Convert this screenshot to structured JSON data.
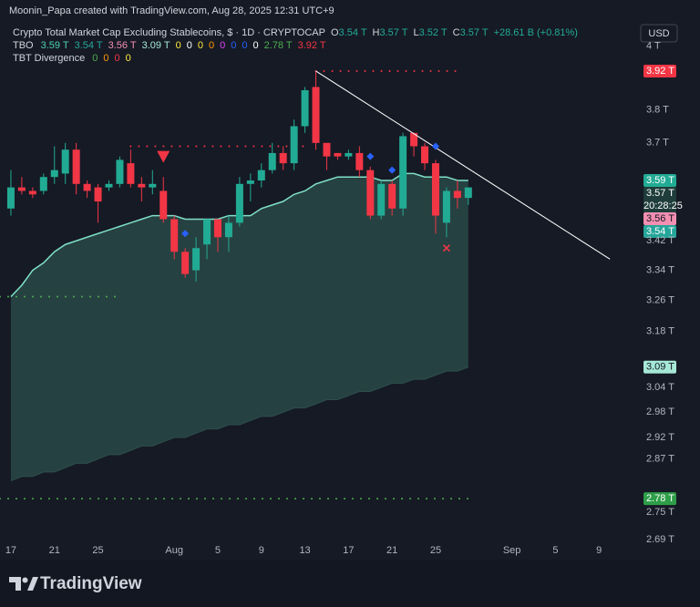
{
  "attribution": "Moonin_Papa created with TradingView.com, Aug 28, 2025 12:31 UTC+9",
  "footer_logo": "TradingView",
  "chart_data": {
    "type": "candlestick",
    "title": "Crypto Total Market Cap Excluding Stablecoins, $ · 1D · CRYPTOCAP",
    "ohlc_legend": [
      {
        "label": "O",
        "value": "3.54 T"
      },
      {
        "label": "H",
        "value": "3.57 T"
      },
      {
        "label": "L",
        "value": "3.52 T"
      },
      {
        "label": "C",
        "value": "3.57 T"
      }
    ],
    "change": "+28.61 B (+0.81%)",
    "currency": "USD",
    "indicators": [
      {
        "name": "TBO",
        "values": [
          {
            "text": "3.59 T",
            "color": "#4dd0b1"
          },
          {
            "text": "3.54 T",
            "color": "#26a69a"
          },
          {
            "text": "3.56 T",
            "color": "#f48fb1"
          },
          {
            "text": "3.09 T",
            "color": "#a5e8d6"
          },
          {
            "text": "0",
            "color": "#ffeb3b"
          },
          {
            "text": "0",
            "color": "#ffffff"
          },
          {
            "text": "0",
            "color": "#ffeb3b"
          },
          {
            "text": "0",
            "color": "#ff9800"
          },
          {
            "text": "0",
            "color": "#e040fb"
          },
          {
            "text": "0",
            "color": "#2962ff"
          },
          {
            "text": "0",
            "color": "#2962ff"
          },
          {
            "text": "0",
            "color": "#ffffff"
          },
          {
            "text": "2.78 T",
            "color": "#4caf50"
          },
          {
            "text": "3.92 T",
            "color": "#f23645"
          }
        ]
      },
      {
        "name": "TBT Divergence",
        "values": [
          {
            "text": "0",
            "color": "#4caf50"
          },
          {
            "text": "0",
            "color": "#ff9800"
          },
          {
            "text": "0",
            "color": "#f23645"
          },
          {
            "text": "0",
            "color": "#ffeb3b"
          }
        ]
      }
    ],
    "x": [
      "2025-07-17",
      "2025-07-18",
      "2025-07-19",
      "2025-07-20",
      "2025-07-21",
      "2025-07-22",
      "2025-07-23",
      "2025-07-24",
      "2025-07-25",
      "2025-07-26",
      "2025-07-27",
      "2025-07-28",
      "2025-07-29",
      "2025-07-30",
      "2025-07-31",
      "2025-08-01",
      "2025-08-02",
      "2025-08-03",
      "2025-08-04",
      "2025-08-05",
      "2025-08-06",
      "2025-08-07",
      "2025-08-08",
      "2025-08-09",
      "2025-08-10",
      "2025-08-11",
      "2025-08-12",
      "2025-08-13",
      "2025-08-14",
      "2025-08-15",
      "2025-08-16",
      "2025-08-17",
      "2025-08-18",
      "2025-08-19",
      "2025-08-20",
      "2025-08-21",
      "2025-08-22",
      "2025-08-23",
      "2025-08-24",
      "2025-08-25",
      "2025-08-26",
      "2025-08-27",
      "2025-08-28"
    ],
    "open": [
      3.51,
      3.57,
      3.56,
      3.56,
      3.6,
      3.61,
      3.68,
      3.58,
      3.57,
      3.57,
      3.58,
      3.64,
      3.58,
      3.57,
      3.56,
      3.48,
      3.39,
      3.34,
      3.41,
      3.48,
      3.43,
      3.47,
      3.58,
      3.59,
      3.62,
      3.67,
      3.64,
      3.75,
      3.87,
      3.7,
      3.67,
      3.66,
      3.67,
      3.62,
      3.49,
      3.58,
      3.51,
      3.73,
      3.69,
      3.64,
      3.47,
      3.56,
      3.54
    ],
    "high": [
      3.62,
      3.6,
      3.57,
      3.61,
      3.69,
      3.7,
      3.7,
      3.59,
      3.58,
      3.59,
      3.66,
      3.68,
      3.6,
      3.62,
      3.6,
      3.49,
      3.4,
      3.43,
      3.48,
      3.48,
      3.49,
      3.6,
      3.61,
      3.64,
      3.7,
      3.69,
      3.77,
      3.87,
      3.92,
      3.7,
      3.67,
      3.68,
      3.69,
      3.63,
      3.59,
      3.59,
      3.73,
      3.73,
      3.7,
      3.65,
      3.57,
      3.59,
      3.57
    ],
    "low": [
      3.49,
      3.55,
      3.54,
      3.55,
      3.58,
      3.58,
      3.55,
      3.54,
      3.47,
      3.56,
      3.57,
      3.57,
      3.53,
      3.55,
      3.47,
      3.37,
      3.32,
      3.31,
      3.37,
      3.39,
      3.39,
      3.46,
      3.53,
      3.57,
      3.61,
      3.62,
      3.62,
      3.73,
      3.68,
      3.62,
      3.65,
      3.65,
      3.6,
      3.48,
      3.48,
      3.49,
      3.49,
      3.66,
      3.62,
      3.44,
      3.43,
      3.51,
      3.52
    ],
    "close": [
      3.57,
      3.56,
      3.55,
      3.6,
      3.62,
      3.68,
      3.58,
      3.56,
      3.53,
      3.58,
      3.65,
      3.58,
      3.57,
      3.58,
      3.48,
      3.39,
      3.33,
      3.4,
      3.48,
      3.43,
      3.47,
      3.58,
      3.59,
      3.62,
      3.67,
      3.64,
      3.75,
      3.86,
      3.7,
      3.66,
      3.66,
      3.67,
      3.62,
      3.49,
      3.58,
      3.51,
      3.72,
      3.69,
      3.64,
      3.49,
      3.56,
      3.54,
      3.57
    ],
    "up_color": "#22ab94",
    "down_color": "#f23645",
    "ma": {
      "color": "#7fe0c8",
      "values": [
        3.27,
        3.3,
        3.34,
        3.36,
        3.39,
        3.41,
        3.42,
        3.43,
        3.44,
        3.45,
        3.46,
        3.47,
        3.48,
        3.49,
        3.49,
        3.49,
        3.48,
        3.48,
        3.48,
        3.48,
        3.49,
        3.49,
        3.49,
        3.51,
        3.52,
        3.53,
        3.55,
        3.56,
        3.58,
        3.59,
        3.6,
        3.6,
        3.6,
        3.6,
        3.59,
        3.59,
        3.61,
        3.61,
        3.6,
        3.6,
        3.6,
        3.59,
        3.59
      ]
    },
    "cloud": {
      "color": "#2c4f4b",
      "values": [
        2.82,
        2.83,
        2.83,
        2.84,
        2.84,
        2.85,
        2.86,
        2.86,
        2.87,
        2.88,
        2.88,
        2.89,
        2.9,
        2.9,
        2.91,
        2.92,
        2.92,
        2.93,
        2.94,
        2.94,
        2.95,
        2.95,
        2.96,
        2.97,
        2.97,
        2.98,
        2.99,
        2.99,
        3.0,
        3.01,
        3.01,
        3.02,
        3.03,
        3.03,
        3.04,
        3.05,
        3.05,
        3.06,
        3.06,
        3.07,
        3.08,
        3.08,
        3.09
      ]
    },
    "levels": [
      {
        "value": 3.92,
        "from": "2025-08-14",
        "to": "2025-08-27",
        "color": "#f23645"
      },
      {
        "value": 3.69,
        "from": "2025-07-28",
        "to": "2025-08-13",
        "color": "#f23645"
      },
      {
        "value": 3.27,
        "from": "2025-07-16",
        "to": "2025-07-27",
        "color": "#4caf50"
      },
      {
        "value": 2.78,
        "from": "2025-07-16",
        "to": "2025-08-28",
        "color": "#4caf50"
      }
    ],
    "trendline": {
      "from": [
        "2025-08-14",
        3.92
      ],
      "to": [
        "2025-09-10",
        3.37
      ],
      "color": "#ffffff"
    },
    "markers": [
      {
        "shape": "triangle-down",
        "x": "2025-07-31",
        "value": 3.66,
        "color": "#f23645"
      },
      {
        "shape": "diamond",
        "x": "2025-08-02",
        "value": 3.44,
        "color": "#2962ff"
      },
      {
        "shape": "diamond",
        "x": "2025-08-19",
        "value": 3.66,
        "color": "#2962ff"
      },
      {
        "shape": "diamond",
        "x": "2025-08-21",
        "value": 3.62,
        "color": "#2962ff"
      },
      {
        "shape": "diamond",
        "x": "2025-08-25",
        "value": 3.69,
        "color": "#2962ff"
      },
      {
        "shape": "cross",
        "x": "2025-08-26",
        "value": 3.4,
        "color": "#f23645"
      }
    ],
    "price_labels": [
      {
        "value": 3.92,
        "label": "3.92 T",
        "color": "#f23645",
        "text_color": "#ffffff"
      },
      {
        "value": 3.59,
        "label": "3.59 T",
        "color": "#22ab94",
        "text_color": "#ffffff"
      },
      {
        "value": 3.57,
        "label": "3.57 T",
        "countdown": "20:28:25",
        "color": "#1f3d3b",
        "text_color": "#ffffff"
      },
      {
        "value": 3.56,
        "label": "3.56 T",
        "color": "#f48fb1",
        "text_color": "#131722"
      },
      {
        "value": 3.54,
        "label": "3.54 T",
        "color": "#26a69a",
        "text_color": "#ffffff"
      },
      {
        "value": 3.09,
        "label": "3.09 T",
        "color": "#a5e8d6",
        "text_color": "#131722"
      },
      {
        "value": 2.78,
        "label": "2.78 T",
        "color": "#2e9e48",
        "text_color": "#ffffff"
      }
    ],
    "log_scale": true,
    "xlim": [
      "2025-07-16",
      "2025-09-13"
    ],
    "ylim": [
      2.69,
      4.09
    ],
    "xticks": [
      {
        "value": "2025-07-17",
        "label": "17"
      },
      {
        "value": "2025-07-21",
        "label": "21"
      },
      {
        "value": "2025-07-25",
        "label": "25"
      },
      {
        "value": "2025-08-01",
        "label": "Aug"
      },
      {
        "value": "2025-08-05",
        "label": "5"
      },
      {
        "value": "2025-08-09",
        "label": "9"
      },
      {
        "value": "2025-08-13",
        "label": "13"
      },
      {
        "value": "2025-08-17",
        "label": "17"
      },
      {
        "value": "2025-08-21",
        "label": "21"
      },
      {
        "value": "2025-08-25",
        "label": "25"
      },
      {
        "value": "2025-09-01",
        "label": "Sep"
      },
      {
        "value": "2025-09-05",
        "label": "5"
      },
      {
        "value": "2025-09-09",
        "label": "9"
      }
    ],
    "yticks": [
      {
        "value": 4,
        "label": "4 T"
      },
      {
        "value": 3.8,
        "label": "3.8 T"
      },
      {
        "value": 3.7,
        "label": "3.7 T"
      },
      {
        "value": 3.42,
        "label": "3.42 T"
      },
      {
        "value": 3.34,
        "label": "3.34 T"
      },
      {
        "value": 3.26,
        "label": "3.26 T"
      },
      {
        "value": 3.18,
        "label": "3.18 T"
      },
      {
        "value": 3.04,
        "label": "3.04 T"
      },
      {
        "value": 2.98,
        "label": "2.98 T"
      },
      {
        "value": 2.92,
        "label": "2.92 T"
      },
      {
        "value": 2.87,
        "label": "2.87 T"
      },
      {
        "value": 2.75,
        "label": "2.75 T"
      },
      {
        "value": 2.69,
        "label": "2.69 T"
      }
    ]
  }
}
